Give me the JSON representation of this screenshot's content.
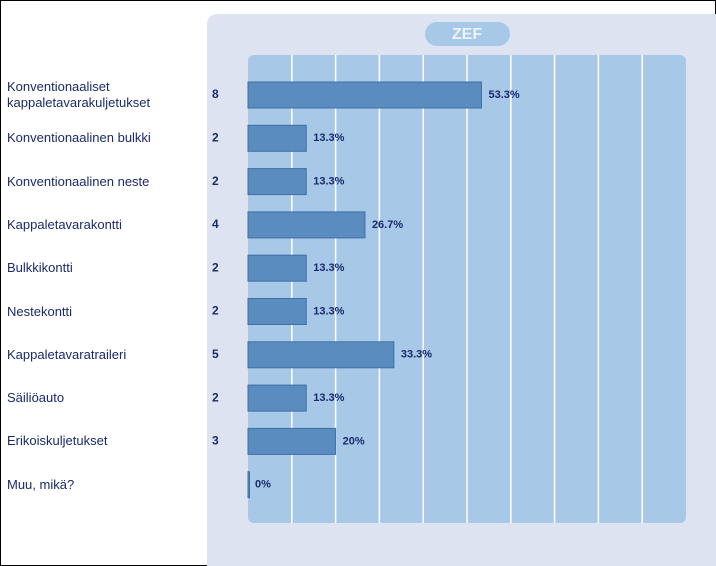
{
  "logo": "ZEF",
  "chart_data": {
    "type": "bar",
    "orientation": "horizontal",
    "categories": [
      "Konventionaaliset kappaletavarakuljetukset",
      "Konventionaalinen bulkki",
      "Konventionaalinen neste",
      "Kappaletavarakontti",
      "Bulkkikontti",
      "Nestekontti",
      "Kappaletavaratraileri",
      "Säiliöauto",
      "Erikoiskuljetukset",
      "Muu, mikä?"
    ],
    "counts": [
      8,
      2,
      2,
      4,
      2,
      2,
      5,
      2,
      3,
      null
    ],
    "values": [
      53.3,
      13.3,
      13.3,
      26.7,
      13.3,
      13.3,
      33.3,
      13.3,
      20,
      0
    ],
    "value_labels": [
      "53.3%",
      "13.3%",
      "13.3%",
      "26.7%",
      "13.3%",
      "13.3%",
      "33.3%",
      "13.3%",
      "20%",
      "0%"
    ],
    "color": "#5b8cc0",
    "xlim": [
      0,
      100
    ],
    "xticks": [
      0,
      10,
      20,
      30,
      40,
      50,
      60,
      70,
      80,
      90,
      100
    ],
    "grid": true
  }
}
